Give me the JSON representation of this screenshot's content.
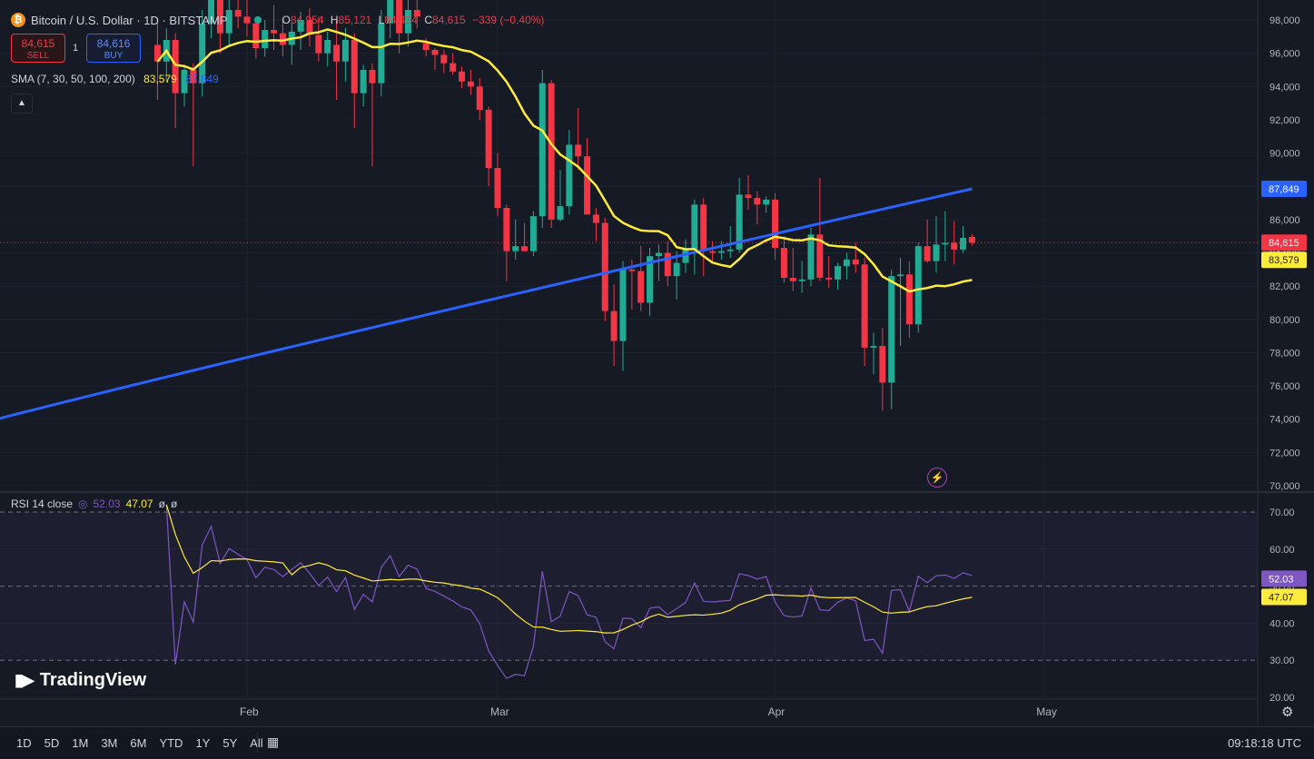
{
  "header": {
    "symbol": "Bitcoin / U.S. Dollar · 1D · BITSTAMP",
    "coin_glyph": "₿",
    "ohlc": {
      "o_label": "O",
      "o": "84,954",
      "h_label": "H",
      "h": "85,121",
      "l_label": "L",
      "l": "84,434",
      "c_label": "C",
      "c": "84,615",
      "change": "−339 (−0.40%)"
    }
  },
  "trade": {
    "sell_price": "84,615",
    "sell_label": "SELL",
    "buy_price": "84,616",
    "buy_label": "BUY",
    "qty": "1"
  },
  "sma": {
    "label": "SMA (7, 30, 50, 100, 200)",
    "v1": "83,579",
    "v2": "87,849"
  },
  "rsi": {
    "label": "RSI 14 close",
    "v1": "52.03",
    "v2": "47.07",
    "v3": "ø",
    "v4": "ø"
  },
  "logo": "TradingView",
  "timeframes": [
    "1D",
    "5D",
    "1M",
    "3M",
    "6M",
    "YTD",
    "1Y",
    "5Y",
    "All"
  ],
  "clock": "09:18:18 UTC",
  "colors": {
    "up": "#22ab94",
    "down": "#f23645",
    "sma_yellow": "#ffeb3b",
    "sma_blue": "#2962ff",
    "rsi": "#7e57c2",
    "bg": "#161a25"
  },
  "chart_data": [
    {
      "type": "candlestick",
      "ylim": [
        70000,
        99000
      ],
      "price_ticks": [
        70000,
        72000,
        74000,
        76000,
        78000,
        80000,
        82000,
        84000,
        86000,
        88000,
        90000,
        92000,
        94000,
        96000,
        98000
      ],
      "price_tick_labels": [
        "70,000",
        "72,000",
        "74,000",
        "76,000",
        "78,000",
        "80,000",
        "82,000",
        "84,000",
        "86,000",
        "88,000",
        "90,000",
        "92,000",
        "94,000",
        "96,000",
        "98,000"
      ],
      "x_labels": [
        {
          "label": "Feb",
          "date": "2025-02-01"
        },
        {
          "label": "Mar",
          "date": "2025-03-01"
        },
        {
          "label": "Apr",
          "date": "2025-04-01"
        },
        {
          "label": "May",
          "date": "2025-05-01"
        }
      ],
      "badges": {
        "sma_blue": "87,849",
        "last": "84,615",
        "sma_yellow": "83,579"
      },
      "candles_from_feb21": [
        [
          96600,
          96900,
          95800,
          96200
        ],
        [
          96200,
          96300,
          95000,
          95900
        ],
        [
          95900,
          96200,
          94800,
          95400
        ],
        [
          95400,
          96000,
          94700,
          94900
        ],
        [
          94900,
          95200,
          93900,
          94300
        ],
        [
          94300,
          95000,
          93500,
          94000
        ],
        [
          94000,
          94500,
          92000,
          92600
        ],
        [
          92600,
          92800,
          88000,
          89100
        ],
        [
          89100,
          90000,
          86200,
          86700
        ],
        [
          86700,
          86900,
          82300,
          84100
        ],
        [
          84100,
          86000,
          83600,
          84400
        ],
        [
          84400,
          85800,
          84300,
          84100
        ],
        [
          84100,
          86500,
          83800,
          86200
        ],
        [
          86200,
          95000,
          85500,
          94200
        ],
        [
          94200,
          94400,
          85500,
          86000
        ],
        [
          86000,
          89000,
          85900,
          86800
        ],
        [
          86800,
          91400,
          86300,
          90500
        ],
        [
          90500,
          92700,
          89000,
          89800
        ],
        [
          89800,
          90900,
          86400,
          86300
        ],
        [
          86300,
          86700,
          84700,
          85800
        ],
        [
          85800,
          86100,
          79900,
          80500
        ],
        [
          80500,
          82100,
          77200,
          78700
        ],
        [
          78700,
          83500,
          76900,
          83000
        ],
        [
          83000,
          83600,
          80600,
          82900
        ],
        [
          82900,
          84400,
          80500,
          81000
        ],
        [
          81000,
          84300,
          80200,
          83800
        ],
        [
          83800,
          84500,
          82300,
          84000
        ],
        [
          84000,
          84700,
          82000,
          82600
        ],
        [
          82600,
          84100,
          81200,
          83400
        ],
        [
          83400,
          84800,
          82800,
          84200
        ],
        [
          84200,
          87200,
          82700,
          86900
        ],
        [
          86900,
          87300,
          82600,
          84100
        ],
        [
          84100,
          84700,
          83400,
          84000
        ],
        [
          84000,
          84700,
          83600,
          84100
        ],
        [
          84100,
          85600,
          83700,
          84200
        ],
        [
          84200,
          88500,
          84000,
          87500
        ],
        [
          87500,
          88700,
          86600,
          87300
        ],
        [
          87300,
          87700,
          85700,
          86900
        ],
        [
          86900,
          87400,
          86400,
          87200
        ],
        [
          87200,
          87600,
          83600,
          84300
        ],
        [
          84300,
          85000,
          82200,
          82500
        ],
        [
          82500,
          84300,
          81700,
          82300
        ],
        [
          82300,
          83500,
          81600,
          82400
        ],
        [
          82400,
          85500,
          82000,
          85100
        ],
        [
          85100,
          88500,
          82300,
          82500
        ],
        [
          82500,
          83800,
          81900,
          82400
        ],
        [
          82400,
          83400,
          81800,
          83200
        ],
        [
          83200,
          84000,
          82400,
          83600
        ],
        [
          83600,
          84600,
          82800,
          83300
        ],
        [
          83300,
          83700,
          77200,
          78300
        ],
        [
          78300,
          79200,
          76700,
          78400
        ],
        [
          78400,
          79500,
          74500,
          76200
        ],
        [
          76200,
          83000,
          74600,
          82600
        ],
        [
          82600,
          83700,
          78400,
          82700
        ],
        [
          82700,
          83500,
          78900,
          79700
        ],
        [
          79700,
          84600,
          79200,
          84400
        ],
        [
          84400,
          86000,
          83400,
          83500
        ],
        [
          83500,
          86200,
          82800,
          84500
        ],
        [
          84500,
          86500,
          83500,
          84600
        ],
        [
          84600,
          85900,
          83300,
          84200
        ],
        [
          84200,
          85600,
          84000,
          84900
        ],
        [
          84954,
          85121,
          84434,
          84615
        ]
      ]
    },
    {
      "type": "line",
      "title": "RSI 14 close",
      "ylim": [
        20,
        72
      ],
      "ticks": [
        20,
        30,
        40,
        50,
        60,
        70
      ],
      "tick_labels": [
        "20.00",
        "30.00",
        "40.00",
        "50.00",
        "60.00",
        "70.00"
      ],
      "bands": [
        30,
        50,
        70
      ],
      "badges": {
        "rsi": "52.03",
        "ma": "47.07"
      }
    }
  ]
}
